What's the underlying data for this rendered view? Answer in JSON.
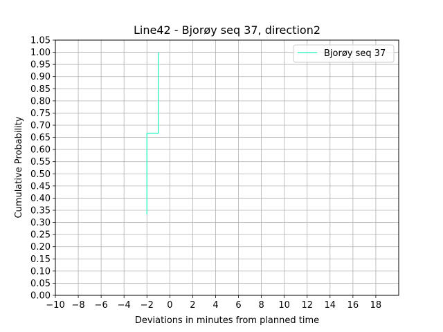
{
  "chart_data": {
    "type": "line",
    "title": "Line42 - Bjorøy seq 37, direction2",
    "xlabel": "Deviations in minutes from planned time",
    "ylabel": "Cumulative Probability",
    "xlim": [
      -10,
      20
    ],
    "ylim": [
      0,
      1.05
    ],
    "xticks": [
      -10,
      -8,
      -6,
      -4,
      -2,
      0,
      2,
      4,
      6,
      8,
      10,
      12,
      14,
      16,
      18
    ],
    "xtick_labels": [
      "−10",
      "−8",
      "−6",
      "−4",
      "−2",
      "0",
      "2",
      "4",
      "6",
      "8",
      "10",
      "12",
      "14",
      "16",
      "18"
    ],
    "yticks": [
      0,
      0.05,
      0.1,
      0.15,
      0.2,
      0.25,
      0.3,
      0.35,
      0.4,
      0.45,
      0.5,
      0.55,
      0.6,
      0.65,
      0.7,
      0.75,
      0.8,
      0.85,
      0.9,
      0.95,
      1.0,
      1.05
    ],
    "ytick_labels": [
      "0.00",
      "0.05",
      "0.10",
      "0.15",
      "0.20",
      "0.25",
      "0.30",
      "0.35",
      "0.40",
      "0.45",
      "0.50",
      "0.55",
      "0.60",
      "0.65",
      "0.70",
      "0.75",
      "0.80",
      "0.85",
      "0.90",
      "0.95",
      "1.00",
      "1.05"
    ],
    "grid": true,
    "legend_position": "top-right",
    "series": [
      {
        "name": "Bjorøy seq 37",
        "color": "#40f5c8",
        "step": true,
        "x": [
          -2,
          -2,
          -1,
          -1
        ],
        "y": [
          0.333,
          0.667,
          0.667,
          1.0
        ]
      }
    ]
  }
}
